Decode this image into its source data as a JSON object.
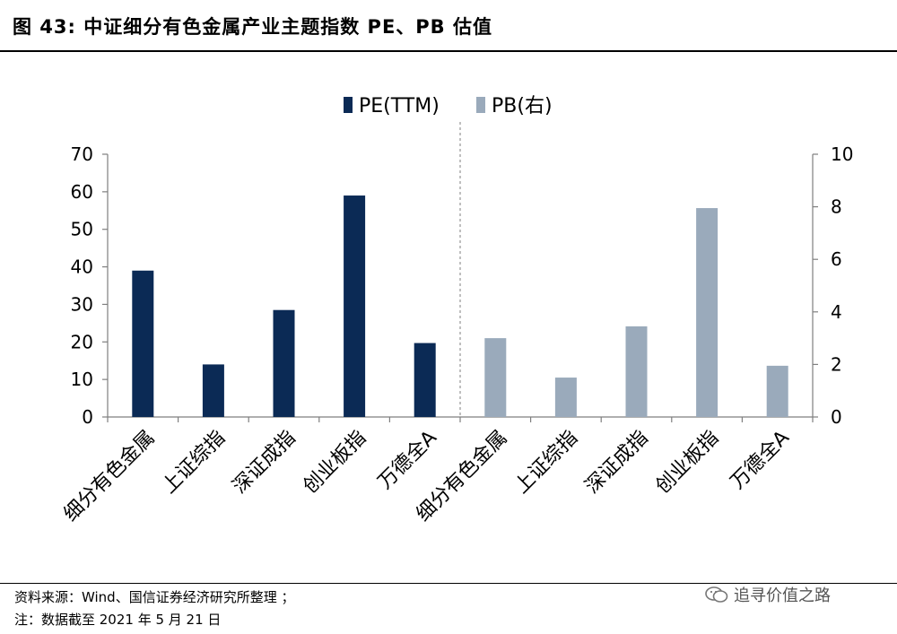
{
  "header": {
    "title": "图 43: 中证细分有色金属产业主题指数 PE、PB 估值"
  },
  "chart_data": {
    "type": "bar",
    "title": "",
    "series": [
      {
        "name": "PE(TTM)",
        "axis": "left",
        "color": "#0b2a55",
        "categories": [
          "细分有色金属",
          "上证综指",
          "深证成指",
          "创业板指",
          "万德全A"
        ],
        "values": [
          39,
          14,
          28.5,
          59,
          19.7
        ]
      },
      {
        "name": "PB(右)",
        "axis": "right",
        "color": "#9aaabb",
        "categories": [
          "细分有色金属",
          "上证综指",
          "深证成指",
          "创业板指",
          "万德全A"
        ],
        "values": [
          3.0,
          1.5,
          3.45,
          7.95,
          1.95
        ]
      }
    ],
    "y_left": {
      "min": 0,
      "max": 70,
      "ticks": [
        "0",
        "10",
        "20",
        "30",
        "40",
        "50",
        "60",
        "70"
      ]
    },
    "y_right": {
      "min": 0,
      "max": 10,
      "ticks": [
        "0",
        "2",
        "4",
        "6",
        "8",
        "10"
      ]
    },
    "grid": false,
    "legend_position": "top-center",
    "divider": "dashed vertical line between PE and PB groups"
  },
  "footer": {
    "source": "资料来源：Wind、国信证券经济研究所整理 ；",
    "note": "注：数据截至 2021 年 5 月 21 日",
    "watermark": "追寻价值之路"
  }
}
